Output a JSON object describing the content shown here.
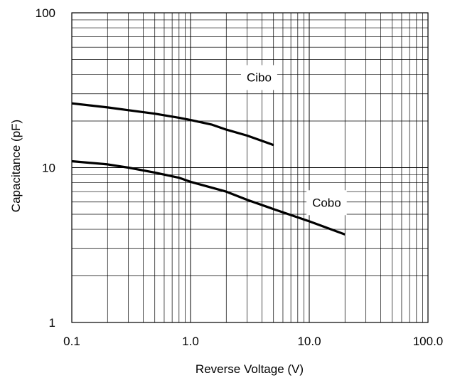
{
  "chart_data": {
    "type": "line",
    "xlabel": "Reverse Voltage (V)",
    "ylabel": "Capacitance (pF)",
    "x_scale": "log",
    "y_scale": "log",
    "xlim": [
      0.1,
      100.0
    ],
    "ylim": [
      1,
      100
    ],
    "x_tick_labels": [
      "0.1",
      "1.0",
      "10.0",
      "100.0"
    ],
    "x_tick_values": [
      0.1,
      1.0,
      10.0,
      100.0
    ],
    "y_tick_labels": [
      "1",
      "10",
      "100"
    ],
    "y_tick_values": [
      1,
      10,
      100
    ],
    "grid": true,
    "series": [
      {
        "name": "Cibo",
        "x": [
          0.1,
          0.2,
          0.3,
          0.5,
          0.8,
          1.0,
          1.5,
          2.0,
          3.0,
          5.0
        ],
        "y": [
          26.0,
          24.5,
          23.5,
          22.3,
          21.0,
          20.3,
          19.0,
          17.6,
          16.1,
          14.0
        ]
      },
      {
        "name": "Cobo",
        "x": [
          0.1,
          0.2,
          0.3,
          0.5,
          0.8,
          1.0,
          2.0,
          3.0,
          5.0,
          10.0,
          20.0
        ],
        "y": [
          11.0,
          10.5,
          10.0,
          9.3,
          8.6,
          8.1,
          7.0,
          6.2,
          5.4,
          4.5,
          3.7
        ]
      }
    ]
  }
}
